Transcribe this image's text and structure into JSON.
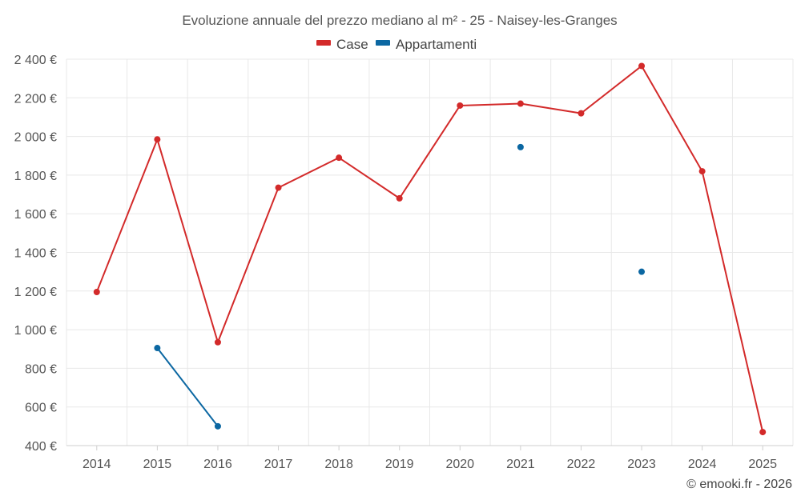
{
  "chart_data": {
    "type": "line",
    "title": "Evoluzione annuale del prezzo mediano al m² - 25 - Naisey-les-Granges",
    "categories": [
      "2014",
      "2015",
      "2016",
      "2017",
      "2018",
      "2019",
      "2020",
      "2021",
      "2022",
      "2023",
      "2024",
      "2025"
    ],
    "y_tick_labels": [
      "400 €",
      "600 €",
      "800 €",
      "1 000 €",
      "1 200 €",
      "1 400 €",
      "1 600 €",
      "1 800 €",
      "2 000 €",
      "2 200 €",
      "2 400 €"
    ],
    "ylim": [
      400,
      2400
    ],
    "xlabel": "",
    "ylabel": "",
    "grid": true,
    "legend_position": "top-center",
    "series": [
      {
        "name": "Case",
        "color": "#d32a2a",
        "values": [
          1195,
          1985,
          935,
          1735,
          1890,
          1680,
          2160,
          2170,
          2120,
          2365,
          1820,
          470
        ]
      },
      {
        "name": "Appartamenti",
        "color": "#0b67a2",
        "values": [
          null,
          905,
          500,
          null,
          null,
          null,
          null,
          1945,
          null,
          1300,
          null,
          null
        ]
      }
    ]
  },
  "credit": "© emooki.fr - 2026"
}
